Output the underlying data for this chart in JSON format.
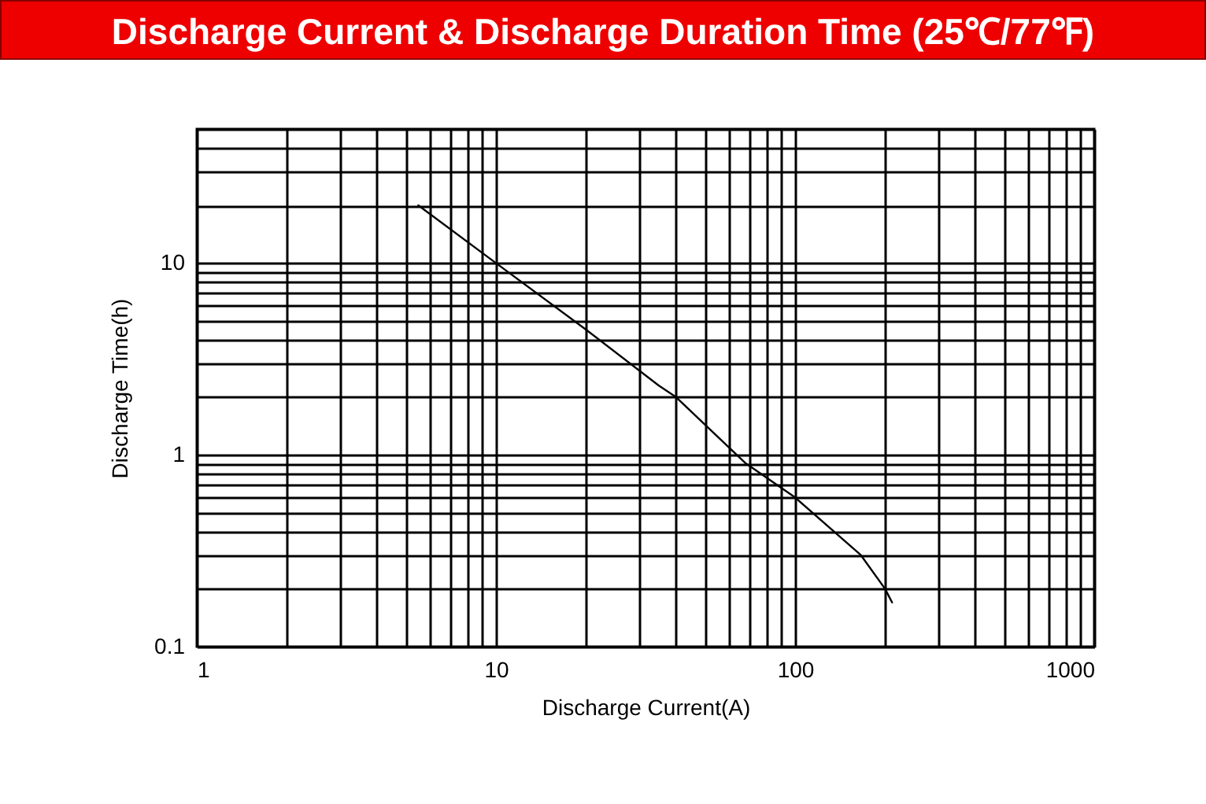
{
  "chart_data": {
    "type": "line",
    "title": "Discharge Current & Discharge Duration Time (25℃/77℉)",
    "xlabel": "Discharge Current(A)",
    "ylabel": "Discharge Time(h)",
    "log": "xy",
    "grid": true,
    "legend": false,
    "marker": "none",
    "line_style": "solid",
    "x": [
      5.5,
      10,
      20,
      35,
      40,
      68,
      100,
      166,
      200,
      211
    ],
    "series": [
      {
        "color": "#000000",
        "values": [
          20,
          10,
          4.5,
          2.3,
          2.0,
          0.91,
          0.6,
          0.3,
          0.2,
          0.17
        ]
      }
    ],
    "xlim": [
      1,
      1000
    ],
    "ylim": [
      0.1,
      50
    ],
    "xticks": [
      1,
      {
        "value": 2,
        "label": null
      },
      {
        "value": 3,
        "label": null
      },
      {
        "value": 4,
        "label": null
      },
      {
        "value": 5,
        "label": null
      },
      {
        "value": 6,
        "label": null
      },
      {
        "value": 7,
        "label": null
      },
      {
        "value": 8,
        "label": null
      },
      {
        "value": 9,
        "label": null
      },
      10,
      {
        "value": 20,
        "label": null
      },
      {
        "value": 30,
        "label": null
      },
      {
        "value": 40,
        "label": null
      },
      {
        "value": 50,
        "label": null
      },
      {
        "value": 60,
        "label": null
      },
      {
        "value": 70,
        "label": null
      },
      {
        "value": 80,
        "label": null
      },
      {
        "value": 90,
        "label": null
      },
      100,
      {
        "value": 200,
        "label": null
      },
      {
        "value": 300,
        "label": null
      },
      {
        "value": 400,
        "label": null
      },
      {
        "value": 500,
        "label": null
      },
      {
        "value": 600,
        "label": null
      },
      {
        "value": 700,
        "label": null
      },
      {
        "value": 800,
        "label": null
      },
      {
        "value": 900,
        "label": null
      },
      1000
    ],
    "yticks": [
      0.1,
      {
        "value": 0.2,
        "label": null
      },
      {
        "value": 0.3,
        "label": null
      },
      {
        "value": 0.4,
        "label": null
      },
      {
        "value": 0.5,
        "label": null
      },
      {
        "value": 0.6,
        "label": null
      },
      {
        "value": 0.7,
        "label": null
      },
      {
        "value": 0.8,
        "label": null
      },
      {
        "value": 0.9,
        "label": null
      },
      1,
      {
        "value": 2,
        "label": null
      },
      {
        "value": 3,
        "label": null
      },
      {
        "value": 4,
        "label": null
      },
      {
        "value": 5,
        "label": null
      },
      {
        "value": 6,
        "label": null
      },
      {
        "value": 7,
        "label": null
      },
      {
        "value": 8,
        "label": null
      },
      {
        "value": 9,
        "label": null
      },
      10,
      {
        "value": 20,
        "label": null
      },
      {
        "value": 30,
        "label": null
      },
      {
        "value": 40,
        "label": null
      },
      {
        "value": 50,
        "label": null
      }
    ]
  }
}
